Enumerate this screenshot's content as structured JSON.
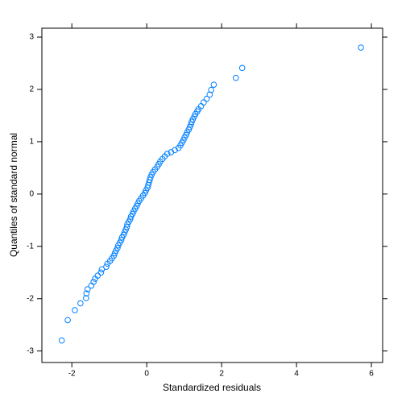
{
  "chart_data": {
    "type": "scatter",
    "x_label": "Standardized residuals",
    "y_label": "Quantiles of standard normal",
    "xlim": [
      -2.8,
      6.3
    ],
    "ylim": [
      -3.22,
      3.17
    ],
    "xticks": [
      -2,
      0,
      2,
      4,
      6
    ],
    "yticks": [
      -3,
      -2,
      -1,
      0,
      1,
      2,
      3
    ],
    "color": "#0080ff",
    "x": [
      -2.27,
      -2.11,
      -1.92,
      -1.77,
      -1.62,
      -1.61,
      -1.58,
      -1.48,
      -1.42,
      -1.38,
      -1.31,
      -1.22,
      -1.2,
      -1.08,
      -1.05,
      -0.98,
      -0.93,
      -0.88,
      -0.85,
      -0.82,
      -0.78,
      -0.76,
      -0.72,
      -0.68,
      -0.66,
      -0.62,
      -0.59,
      -0.56,
      -0.53,
      -0.52,
      -0.48,
      -0.44,
      -0.42,
      -0.38,
      -0.35,
      -0.31,
      -0.27,
      -0.24,
      -0.2,
      -0.15,
      -0.1,
      -0.05,
      -0.02,
      0.02,
      0.04,
      0.06,
      0.08,
      0.1,
      0.13,
      0.17,
      0.22,
      0.28,
      0.32,
      0.36,
      0.42,
      0.48,
      0.55,
      0.65,
      0.75,
      0.85,
      0.9,
      0.94,
      0.98,
      1.01,
      1.05,
      1.08,
      1.12,
      1.15,
      1.18,
      1.2,
      1.23,
      1.27,
      1.3,
      1.35,
      1.38,
      1.45,
      1.52,
      1.6,
      1.68,
      1.72,
      1.79,
      2.38,
      2.55,
      5.72
    ],
    "values": [
      -2.8,
      -2.41,
      -2.22,
      -2.09,
      -1.99,
      -1.9,
      -1.82,
      -1.75,
      -1.68,
      -1.62,
      -1.56,
      -1.5,
      -1.44,
      -1.39,
      -1.33,
      -1.28,
      -1.23,
      -1.18,
      -1.13,
      -1.08,
      -1.03,
      -0.98,
      -0.93,
      -0.88,
      -0.83,
      -0.78,
      -0.73,
      -0.68,
      -0.63,
      -0.58,
      -0.53,
      -0.48,
      -0.43,
      -0.38,
      -0.33,
      -0.28,
      -0.23,
      -0.18,
      -0.13,
      -0.08,
      -0.03,
      0.02,
      0.07,
      0.12,
      0.17,
      0.22,
      0.27,
      0.32,
      0.37,
      0.42,
      0.47,
      0.52,
      0.57,
      0.62,
      0.67,
      0.72,
      0.77,
      0.8,
      0.84,
      0.88,
      0.93,
      0.98,
      1.03,
      1.08,
      1.13,
      1.18,
      1.23,
      1.28,
      1.33,
      1.38,
      1.43,
      1.48,
      1.53,
      1.58,
      1.62,
      1.68,
      1.75,
      1.82,
      1.9,
      1.99,
      2.09,
      2.22,
      2.41,
      2.8
    ]
  }
}
